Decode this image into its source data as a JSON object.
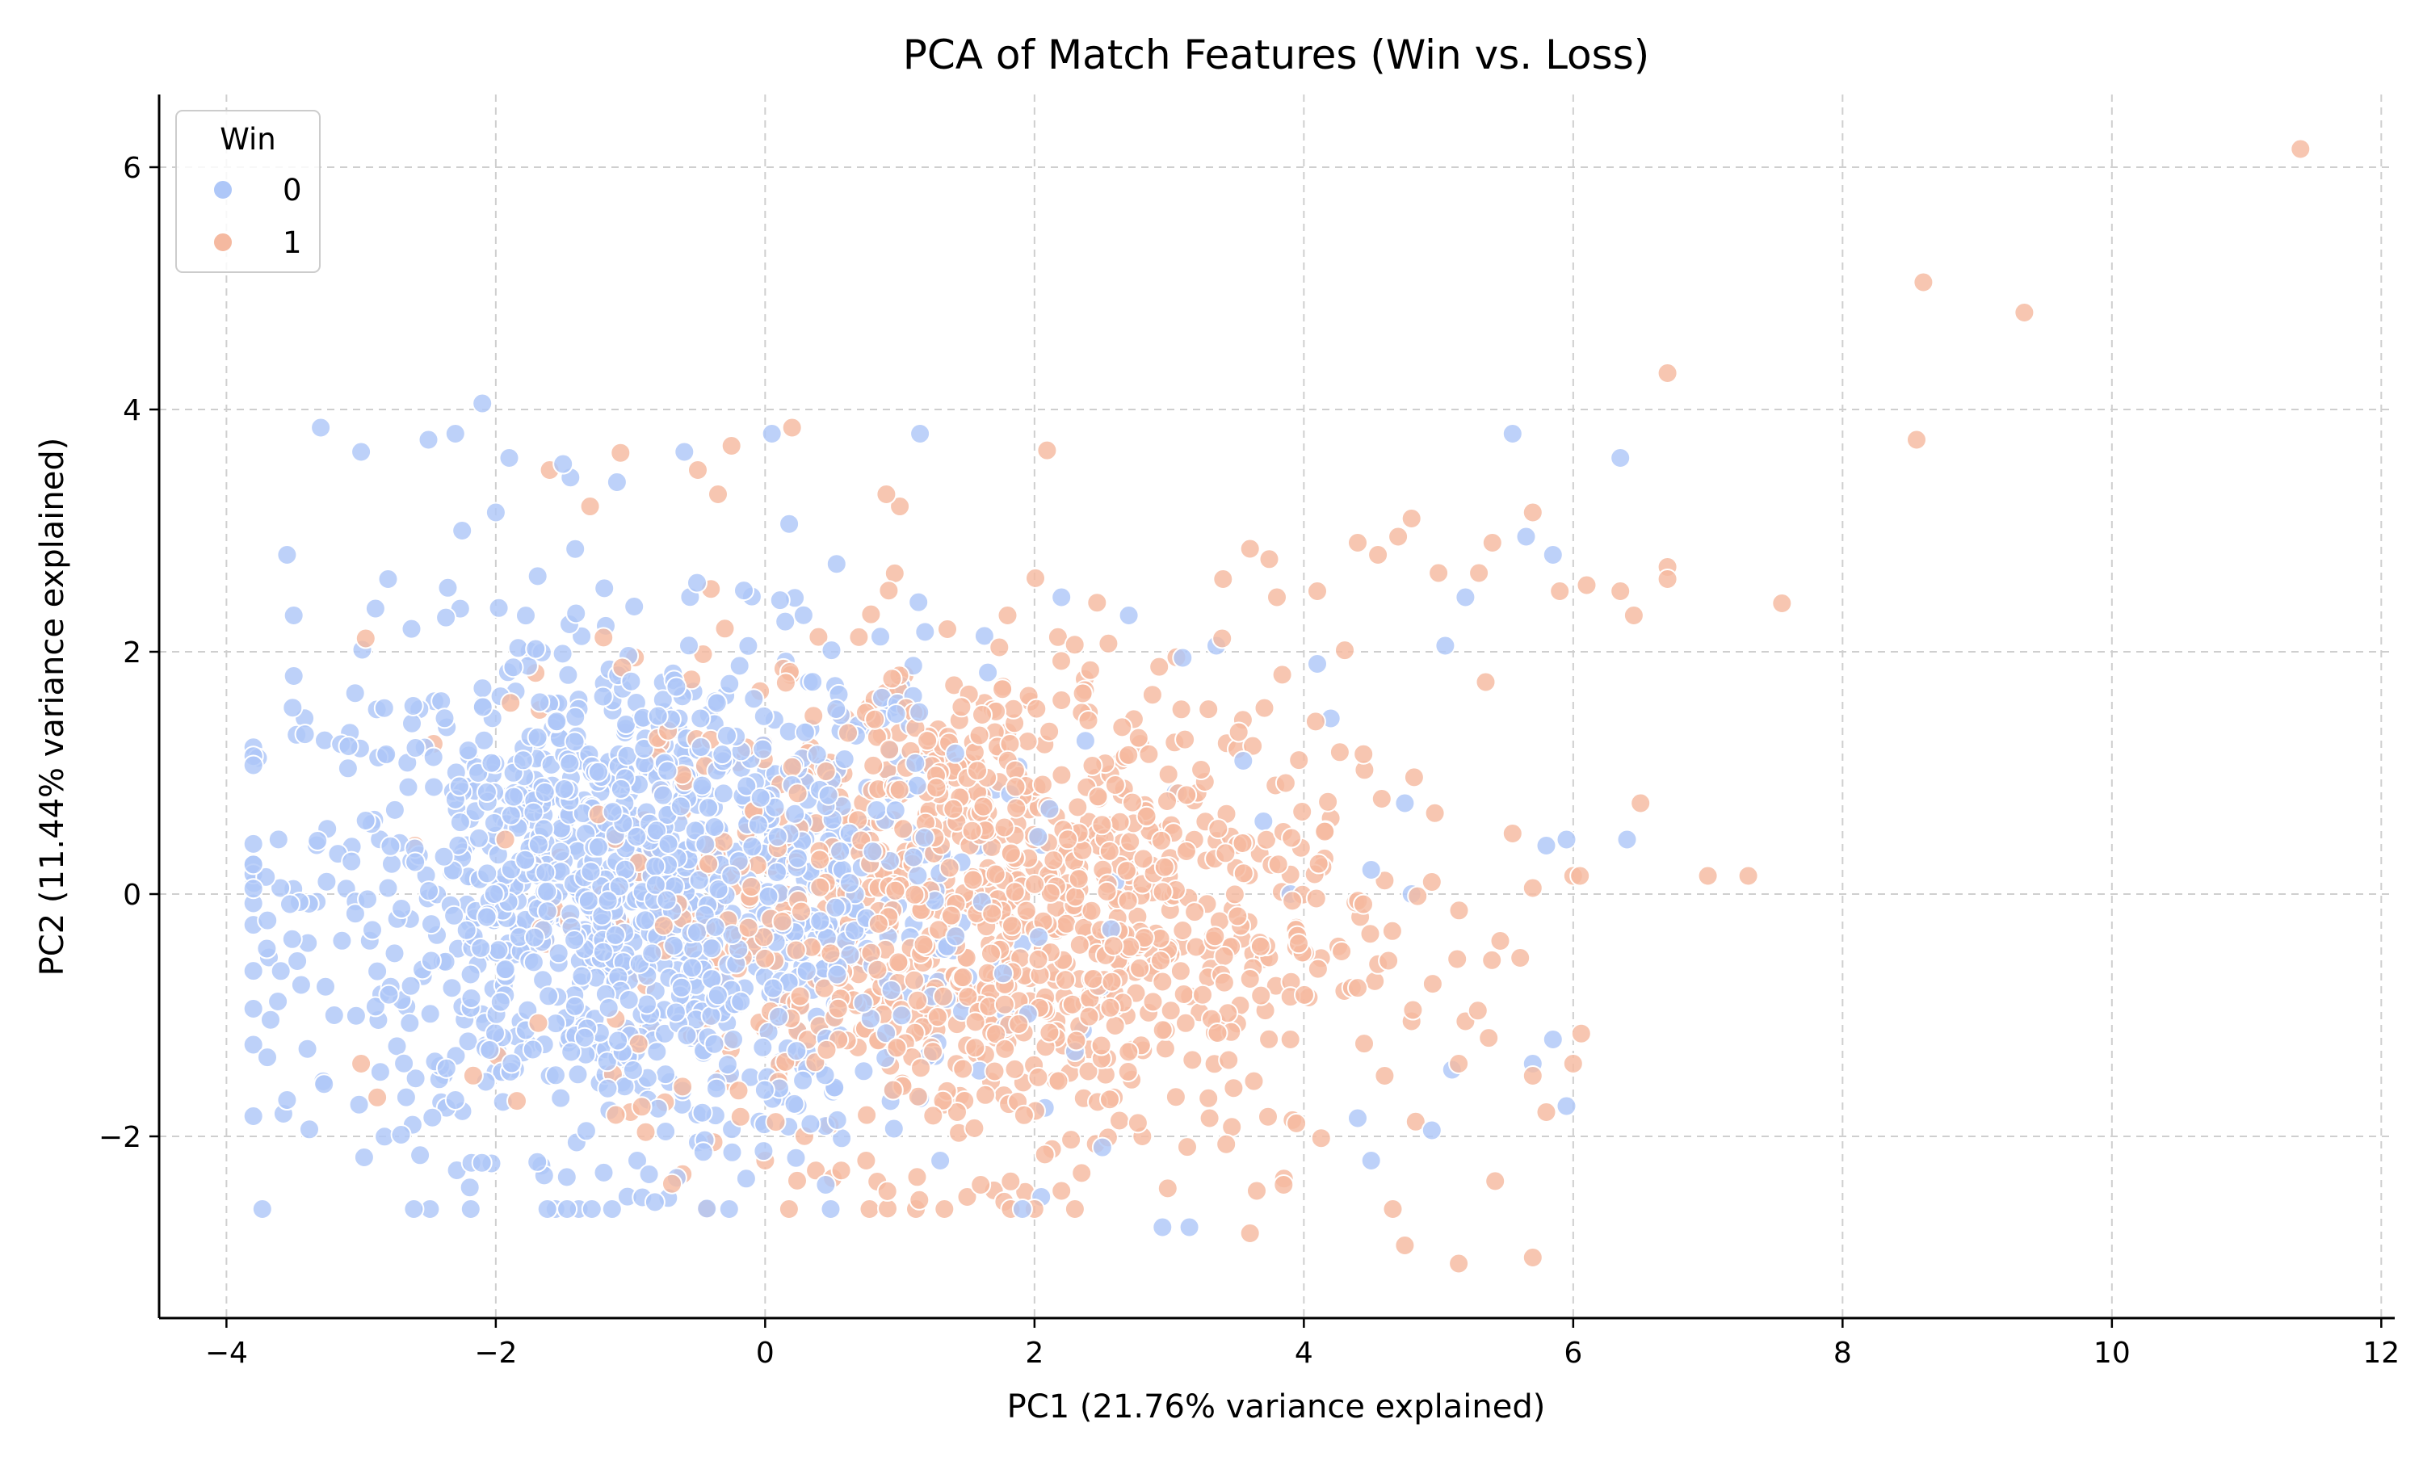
{
  "chart_data": {
    "type": "scatter",
    "title": "PCA of Match Features (Win vs. Loss)",
    "xlabel": "PC1 (21.76% variance explained)",
    "ylabel": "PC2 (11.44% variance explained)",
    "xlim": [
      -4.5,
      12.1
    ],
    "ylim": [
      -3.5,
      6.6
    ],
    "xticks": [
      -4,
      -2,
      0,
      2,
      4,
      6,
      8,
      10,
      12
    ],
    "yticks": [
      -2,
      0,
      2,
      4,
      6
    ],
    "grid": true,
    "legend": {
      "title": "Win",
      "placement": "top-left",
      "entries": [
        "0",
        "1"
      ]
    },
    "colors": {
      "0": "#aec7f8",
      "1": "#f5b9a0"
    },
    "series": [
      {
        "name": "0",
        "cluster": {
          "center": [
            -0.9,
            0.0
          ],
          "spread": [
            1.25,
            1.05
          ],
          "count": 1300
        },
        "points": [
          [
            -3.7,
            -0.45
          ],
          [
            -3.6,
            0.05
          ],
          [
            -3.55,
            -1.7
          ],
          [
            -3.5,
            1.8
          ],
          [
            -3.5,
            2.3
          ],
          [
            -3.55,
            2.8
          ],
          [
            -3.3,
            3.85
          ],
          [
            -3.0,
            3.65
          ],
          [
            -2.8,
            2.6
          ],
          [
            -2.5,
            3.75
          ],
          [
            -2.3,
            3.8
          ],
          [
            -2.1,
            4.05
          ],
          [
            -2.0,
            3.15
          ],
          [
            -2.25,
            3.0
          ],
          [
            -1.9,
            3.6
          ],
          [
            -1.5,
            3.55
          ],
          [
            -1.1,
            3.4
          ],
          [
            -0.6,
            3.65
          ],
          [
            0.05,
            3.8
          ],
          [
            1.15,
            3.8
          ],
          [
            -0.95,
            -2.2
          ],
          [
            -0.5,
            -2.05
          ],
          [
            -1.4,
            -2.05
          ],
          [
            0.45,
            -2.4
          ],
          [
            1.3,
            -2.2
          ],
          [
            2.05,
            -2.5
          ],
          [
            2.95,
            -2.75
          ],
          [
            3.15,
            -2.75
          ],
          [
            4.5,
            -2.2
          ],
          [
            4.95,
            -1.95
          ],
          [
            5.1,
            -1.45
          ],
          [
            5.55,
            3.8
          ],
          [
            5.65,
            2.95
          ],
          [
            5.85,
            2.8
          ],
          [
            5.2,
            2.45
          ],
          [
            5.05,
            2.05
          ],
          [
            6.35,
            3.6
          ],
          [
            5.8,
            0.4
          ],
          [
            5.95,
            0.45
          ],
          [
            6.4,
            0.45
          ],
          [
            5.7,
            -1.4
          ],
          [
            5.85,
            -1.2
          ],
          [
            5.95,
            -1.75
          ],
          [
            4.75,
            0.75
          ],
          [
            4.8,
            0.0
          ],
          [
            4.5,
            0.2
          ],
          [
            4.1,
            1.9
          ],
          [
            4.2,
            1.45
          ],
          [
            3.9,
            0.0
          ],
          [
            3.7,
            0.6
          ],
          [
            3.55,
            1.1
          ],
          [
            4.4,
            -1.85
          ],
          [
            3.35,
            2.05
          ],
          [
            3.1,
            1.95
          ],
          [
            2.7,
            2.3
          ],
          [
            2.2,
            2.45
          ],
          [
            -3.2,
            -1.0
          ],
          [
            -2.8,
            0.05
          ],
          [
            -2.3,
            -1.7
          ],
          [
            -1.6,
            -1.5
          ],
          [
            -0.9,
            1.2
          ],
          [
            0.2,
            0.9
          ],
          [
            0.8,
            -0.5
          ],
          [
            1.4,
            0.6
          ],
          [
            2.3,
            -1.3
          ],
          [
            2.6,
            0.1
          ]
        ]
      },
      {
        "name": "1",
        "cluster": {
          "center": [
            1.6,
            -0.1
          ],
          "spread": [
            1.35,
            1.05
          ],
          "count": 1100
        },
        "points": [
          [
            11.4,
            6.15
          ],
          [
            8.6,
            5.05
          ],
          [
            9.35,
            4.8
          ],
          [
            8.55,
            3.75
          ],
          [
            6.7,
            4.3
          ],
          [
            6.7,
            2.7
          ],
          [
            6.7,
            2.6
          ],
          [
            7.55,
            2.4
          ],
          [
            6.1,
            2.55
          ],
          [
            6.35,
            2.5
          ],
          [
            6.45,
            2.3
          ],
          [
            5.9,
            2.5
          ],
          [
            5.7,
            3.15
          ],
          [
            5.4,
            2.9
          ],
          [
            5.3,
            2.65
          ],
          [
            5.0,
            2.65
          ],
          [
            5.35,
            1.75
          ],
          [
            7.0,
            0.15
          ],
          [
            7.3,
            0.15
          ],
          [
            6.5,
            0.75
          ],
          [
            6.0,
            0.15
          ],
          [
            6.05,
            0.15
          ],
          [
            5.7,
            0.05
          ],
          [
            5.55,
            0.5
          ],
          [
            5.8,
            -1.8
          ],
          [
            5.7,
            -1.5
          ],
          [
            6.0,
            -1.4
          ],
          [
            5.2,
            -1.05
          ],
          [
            5.15,
            -1.4
          ],
          [
            4.8,
            -1.05
          ],
          [
            4.95,
            0.1
          ],
          [
            4.8,
            3.1
          ],
          [
            4.7,
            2.95
          ],
          [
            4.55,
            2.8
          ],
          [
            4.4,
            2.9
          ],
          [
            4.1,
            2.5
          ],
          [
            3.6,
            2.85
          ],
          [
            3.4,
            2.6
          ],
          [
            3.8,
            2.45
          ],
          [
            5.15,
            -3.05
          ],
          [
            5.7,
            -3.0
          ],
          [
            4.75,
            -2.9
          ],
          [
            3.6,
            -2.8
          ],
          [
            3.65,
            -2.45
          ],
          [
            3.85,
            -2.4
          ],
          [
            3.3,
            -1.85
          ],
          [
            2.8,
            -2.0
          ],
          [
            2.3,
            -2.6
          ],
          [
            2.2,
            -2.45
          ],
          [
            1.6,
            -2.4
          ],
          [
            1.5,
            -2.5
          ],
          [
            0.75,
            -2.2
          ],
          [
            0.2,
            3.85
          ],
          [
            -0.25,
            3.7
          ],
          [
            -0.5,
            3.5
          ],
          [
            -1.6,
            3.5
          ],
          [
            -1.3,
            3.2
          ],
          [
            -0.35,
            3.3
          ],
          [
            0.9,
            3.3
          ],
          [
            1.0,
            3.2
          ],
          [
            -2.6,
            0.4
          ],
          [
            -3.0,
            -1.4
          ],
          [
            -1.0,
            -1.8
          ],
          [
            0.0,
            -2.2
          ],
          [
            2.6,
            0.9
          ],
          [
            3.1,
            -0.3
          ],
          [
            3.6,
            -0.7
          ],
          [
            3.9,
            -1.2
          ],
          [
            4.3,
            -0.8
          ],
          [
            4.6,
            -1.5
          ],
          [
            2.2,
            1.6
          ],
          [
            1.8,
            2.3
          ]
        ]
      }
    ]
  }
}
